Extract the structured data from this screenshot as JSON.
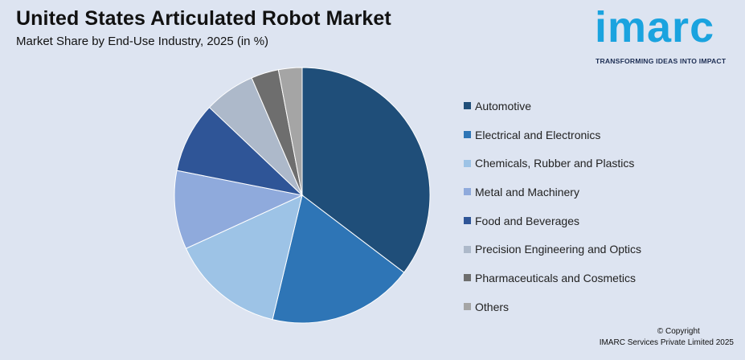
{
  "header": {
    "title": "United States Articulated Robot Market",
    "subtitle": "Market Share by End-Use Industry, 2025 (in %)"
  },
  "logo": {
    "wordmark": "imarc",
    "tagline": "TRANSFORMING IDEAS INTO IMPACT",
    "color": "#1aa3df"
  },
  "chart_data": {
    "type": "pie",
    "title": "United States Articulated Robot Market",
    "subtitle": "Market Share by End-Use Industry, 2025 (in %)",
    "legend_position": "right",
    "slices": [
      {
        "label": "Automotive",
        "value": 35.5,
        "color": "#1f4e79"
      },
      {
        "label": "Electrical and Electronics",
        "value": 18.5,
        "color": "#2e75b6"
      },
      {
        "label": "Chemicals, Rubber and Plastics",
        "value": 14.5,
        "color": "#9dc3e6"
      },
      {
        "label": "Metal and Machinery",
        "value": 10.0,
        "color": "#8faadc"
      },
      {
        "label": "Food and Beverages",
        "value": 9.0,
        "color": "#2f5597"
      },
      {
        "label": "Precision Engineering and Optics",
        "value": 6.5,
        "color": "#adb9ca"
      },
      {
        "label": "Pharmaceuticals and Cosmetics",
        "value": 3.5,
        "color": "#6e6e6e"
      },
      {
        "label": "Others",
        "value": 3.0,
        "color": "#a5a5a5"
      }
    ]
  },
  "footer": {
    "copyright": "© Copyright",
    "company": "IMARC Services Private Limited 2025"
  }
}
